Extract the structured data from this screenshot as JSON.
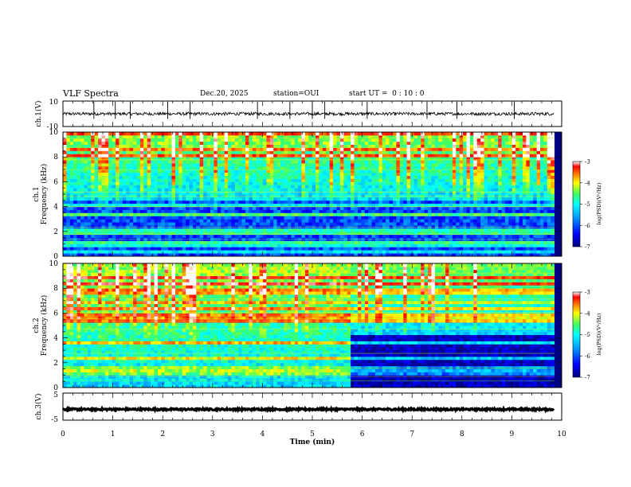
{
  "header": {
    "title": "VLF Spectra",
    "date": "Dec.20, 2025",
    "station_label": "station=",
    "station": "OUI",
    "start_label": "start  UT =",
    "start_time": "0 : 10 : 0"
  },
  "chart_data": [
    {
      "type": "line",
      "id": "ch1_waveform",
      "ylabel": "ch.1(V)",
      "ylim": [
        -10,
        10
      ],
      "yticks": [
        "10",
        "-10"
      ],
      "baseline": 0,
      "noise_amplitude": 1.2,
      "spikes": [
        0.62,
        1.05,
        1.35,
        2.1,
        2.55,
        3.9,
        4.55,
        5.0,
        5.25,
        6.1,
        7.3,
        7.9,
        9.05
      ]
    },
    {
      "type": "heatmap",
      "id": "ch1_spectrogram",
      "ylabel": "ch.1 Frequency (kHz)",
      "ylabel_top": "ch.1",
      "ylabel_main": "Frequency (kHz)",
      "ylim": [
        0,
        10
      ],
      "yticks": [
        "0",
        "2",
        "4",
        "6",
        "8",
        "10"
      ],
      "xlim": [
        0,
        9.85
      ],
      "colorbar": {
        "label": "log(PSD)(V²/Hz)",
        "range": [
          -7,
          -3
        ],
        "ticks": [
          "-3",
          "-4",
          "-5",
          "-6",
          "-7"
        ]
      },
      "step_time_min": null
    },
    {
      "type": "heatmap",
      "id": "ch2_spectrogram",
      "ylabel": "ch.2 Frequency (kHz)",
      "ylabel_top": "ch.2",
      "ylabel_main": "Frequency (kHz)",
      "ylim": [
        0,
        10
      ],
      "yticks": [
        "0",
        "2",
        "4",
        "6",
        "8",
        "10"
      ],
      "xlim": [
        0,
        9.85
      ],
      "colorbar": {
        "label": "log(PSD)(V²/Hz)",
        "range": [
          -7,
          -3
        ],
        "ticks": [
          "-3",
          "-4",
          "-5",
          "-6",
          "-7"
        ]
      },
      "step_time_min": 5.8
    },
    {
      "type": "line",
      "id": "ch3_waveform",
      "ylabel": "ch.3(V)",
      "ylim": [
        -5,
        5
      ],
      "yticks": [
        "5",
        "-5"
      ],
      "baseline": -1,
      "noise_amplitude": 0.3
    }
  ],
  "x_axis": {
    "label": "Time  (min)",
    "range": [
      0,
      10
    ],
    "ticks": [
      "0",
      "1",
      "2",
      "3",
      "4",
      "5",
      "6",
      "7",
      "8",
      "9",
      "10"
    ]
  },
  "colors": {
    "frame": "#000000",
    "colormap": [
      "#000080",
      "#0000ff",
      "#00a0ff",
      "#00ffff",
      "#40ff60",
      "#ffff00",
      "#ff8000",
      "#ff0000",
      "#ffffff"
    ]
  }
}
